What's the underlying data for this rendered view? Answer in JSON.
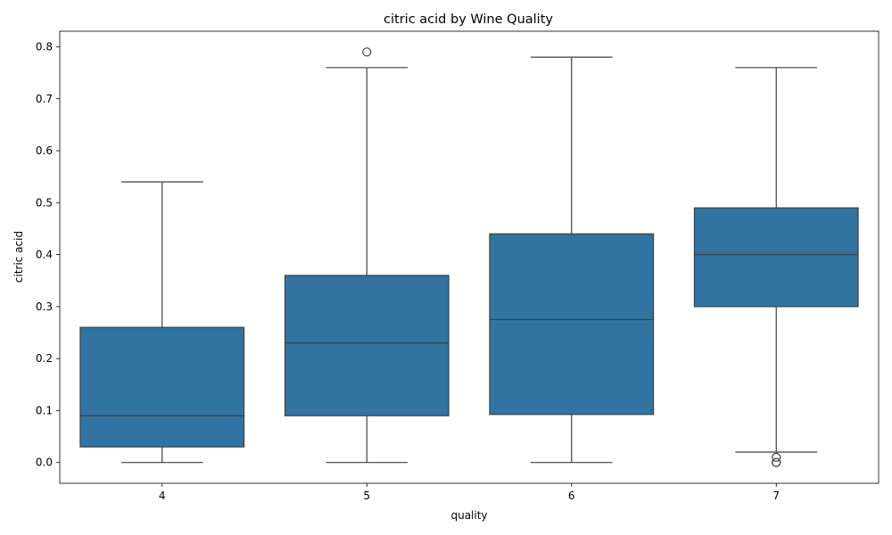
{
  "chart_data": {
    "type": "box",
    "title": "citric acid by Wine Quality",
    "xlabel": "quality",
    "ylabel": "citric acid",
    "categories": [
      "4",
      "5",
      "6",
      "7"
    ],
    "boxes": [
      {
        "category": "4",
        "whisker_low": 0.0,
        "q1": 0.03,
        "median": 0.09,
        "q3": 0.26,
        "whisker_high": 0.54,
        "outliers": []
      },
      {
        "category": "5",
        "whisker_low": 0.0,
        "q1": 0.09,
        "median": 0.23,
        "q3": 0.36,
        "whisker_high": 0.76,
        "outliers": [
          0.79
        ]
      },
      {
        "category": "6",
        "whisker_low": 0.0,
        "q1": 0.0925,
        "median": 0.275,
        "q3": 0.44,
        "whisker_high": 0.78,
        "outliers": []
      },
      {
        "category": "7",
        "whisker_low": 0.02,
        "q1": 0.3,
        "median": 0.4,
        "q3": 0.49,
        "whisker_high": 0.76,
        "outliers": [
          0.01,
          0.0,
          0.0
        ]
      }
    ],
    "yticks": [
      "0.0",
      "0.1",
      "0.2",
      "0.3",
      "0.4",
      "0.5",
      "0.6",
      "0.7",
      "0.8"
    ],
    "ylim": [
      -0.04,
      0.83
    ],
    "grid": false,
    "colors": {
      "box_fill": "#3274a1",
      "line": "#3f3f3f"
    }
  }
}
